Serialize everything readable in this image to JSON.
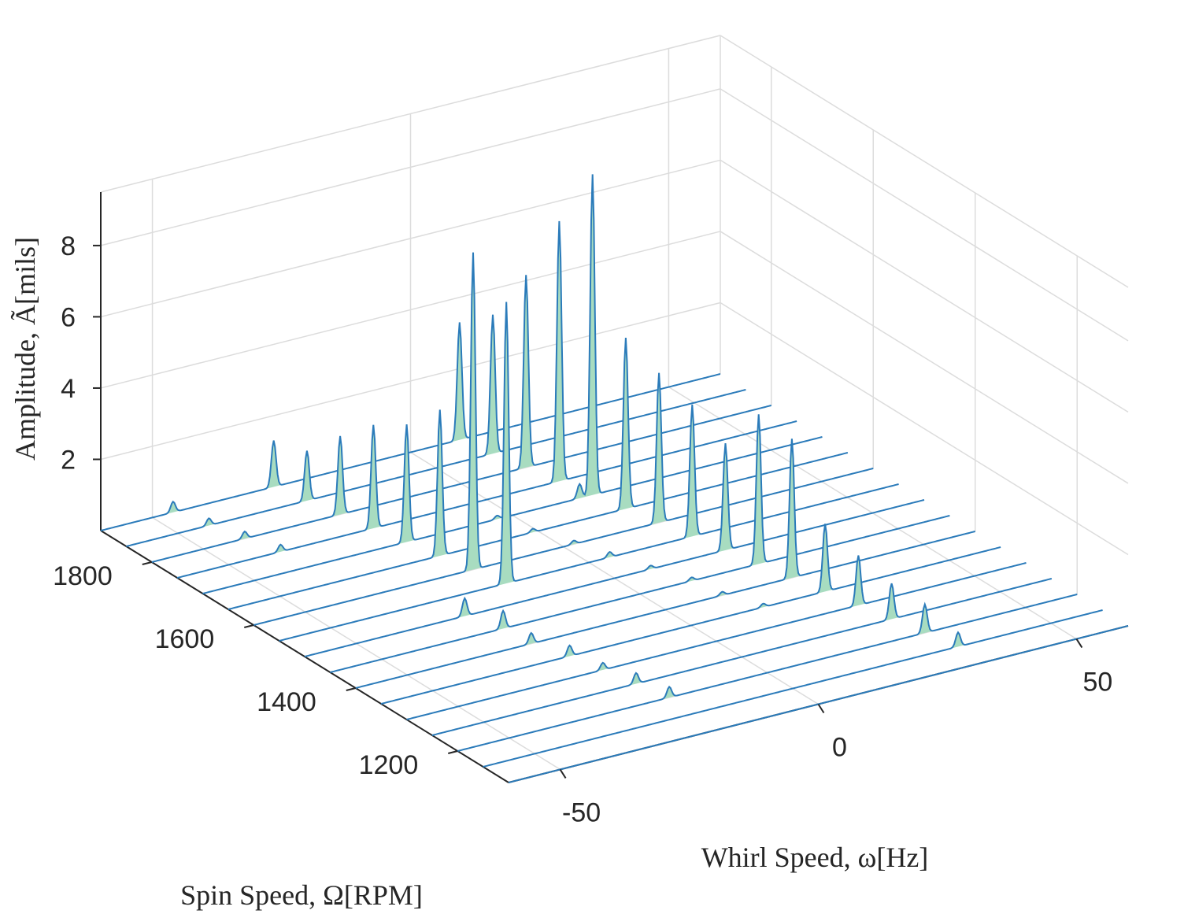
{
  "chart_data": {
    "type": "waterfall-3d",
    "title": "",
    "xlabel": "Whirl Speed, ω[Hz]",
    "ylabel": "Spin Speed, Ω[RPM]",
    "zlabel": "Amplitude, Ã[mils]",
    "xlim": [
      -60,
      60
    ],
    "ylim": [
      1100,
      1900
    ],
    "zlim": [
      0,
      9.5
    ],
    "x_ticks": [
      {
        "value": -50,
        "label": "-50"
      },
      {
        "value": 0,
        "label": "0"
      },
      {
        "value": 50,
        "label": "50"
      }
    ],
    "y_ticks": [
      {
        "value": 1200,
        "label": "1200"
      },
      {
        "value": 1400,
        "label": "1400"
      },
      {
        "value": 1600,
        "label": "1600"
      },
      {
        "value": 1800,
        "label": "1800"
      }
    ],
    "z_ticks": [
      {
        "value": 2,
        "label": "2"
      },
      {
        "value": 4,
        "label": "4"
      },
      {
        "value": 6,
        "label": "6"
      },
      {
        "value": 8,
        "label": "8"
      }
    ],
    "grid": true,
    "colors": {
      "line": "#2b7bba",
      "fill": "#a8dcc0",
      "grid": "#dcdcdc",
      "axis": "#262626"
    },
    "series": [
      {
        "spin_rpm": 1100,
        "peaks": []
      },
      {
        "spin_rpm": 1150,
        "peaks": [
          {
            "whirl_hz": 32.0,
            "amplitude": 0.4
          }
        ]
      },
      {
        "spin_rpm": 1200,
        "peaks": [
          {
            "whirl_hz": 30.5,
            "amplitude": 0.8
          },
          {
            "whirl_hz": -19.0,
            "amplitude": 0.3
          }
        ]
      },
      {
        "spin_rpm": 1250,
        "peaks": [
          {
            "whirl_hz": 29.0,
            "amplitude": 1.0
          },
          {
            "whirl_hz": -20.5,
            "amplitude": 0.3
          }
        ]
      },
      {
        "spin_rpm": 1300,
        "peaks": [
          {
            "whirl_hz": 27.5,
            "amplitude": 1.4
          },
          {
            "whirl_hz": -22.0,
            "amplitude": 0.2
          }
        ]
      },
      {
        "spin_rpm": 1350,
        "peaks": [
          {
            "whirl_hz": 26.0,
            "amplitude": 1.9
          },
          {
            "whirl_hz": -23.5,
            "amplitude": 0.3
          },
          {
            "whirl_hz": 14.0,
            "amplitude": 0.1
          }
        ]
      },
      {
        "spin_rpm": 1400,
        "peaks": [
          {
            "whirl_hz": 24.5,
            "amplitude": 3.9
          },
          {
            "whirl_hz": -26.0,
            "amplitude": 0.3
          },
          {
            "whirl_hz": 11.0,
            "amplitude": 0.1
          }
        ]
      },
      {
        "spin_rpm": 1450,
        "peaks": [
          {
            "whirl_hz": 23.0,
            "amplitude": 4.2
          },
          {
            "whirl_hz": -26.5,
            "amplitude": 0.5
          },
          {
            "whirl_hz": 10.0,
            "amplitude": 0.1
          }
        ]
      },
      {
        "spin_rpm": 1500,
        "peaks": [
          {
            "whirl_hz": 21.5,
            "amplitude": 3.0
          },
          {
            "whirl_hz": -29.0,
            "amplitude": 0.5
          },
          {
            "whirl_hz": 7.0,
            "amplitude": 0.1
          }
        ]
      },
      {
        "spin_rpm": 1550,
        "peaks": [
          {
            "whirl_hz": 20.0,
            "amplitude": 3.7
          },
          {
            "whirl_hz": -16.0,
            "amplitude": 7.9
          },
          {
            "whirl_hz": 4.0,
            "amplitude": 0.15
          }
        ]
      },
      {
        "spin_rpm": 1600,
        "peaks": [
          {
            "whirl_hz": 18.5,
            "amplitude": 4.2
          },
          {
            "whirl_hz": -17.5,
            "amplitude": 8.9
          },
          {
            "whirl_hz": 2.0,
            "amplitude": 0.1
          }
        ]
      },
      {
        "spin_rpm": 1650,
        "peaks": [
          {
            "whirl_hz": 17.0,
            "amplitude": 4.8
          },
          {
            "whirl_hz": -19.0,
            "amplitude": 4.1
          },
          {
            "whirl_hz": -1.0,
            "amplitude": 0.1
          }
        ]
      },
      {
        "spin_rpm": 1700,
        "peaks": [
          {
            "whirl_hz": 15.5,
            "amplitude": 9.0
          },
          {
            "whirl_hz": -20.5,
            "amplitude": 3.3
          },
          {
            "whirl_hz": -3.0,
            "amplitude": 0.1
          },
          {
            "whirl_hz": 13.0,
            "amplitude": 0.4
          }
        ]
      },
      {
        "spin_rpm": 1750,
        "peaks": [
          {
            "whirl_hz": 14.0,
            "amplitude": 7.3
          },
          {
            "whirl_hz": -22.0,
            "amplitude": 2.9
          },
          {
            "whirl_hz": -40.0,
            "amplitude": 0.2
          }
        ]
      },
      {
        "spin_rpm": 1800,
        "peaks": [
          {
            "whirl_hz": 12.5,
            "amplitude": 5.4
          },
          {
            "whirl_hz": -23.5,
            "amplitude": 2.2
          },
          {
            "whirl_hz": -42.0,
            "amplitude": 0.2
          }
        ]
      },
      {
        "spin_rpm": 1850,
        "peaks": [
          {
            "whirl_hz": 11.0,
            "amplitude": 3.9
          },
          {
            "whirl_hz": -25.0,
            "amplitude": 1.4
          },
          {
            "whirl_hz": -44.0,
            "amplitude": 0.2
          }
        ]
      },
      {
        "spin_rpm": 1900,
        "peaks": [
          {
            "whirl_hz": 9.5,
            "amplitude": 3.3
          },
          {
            "whirl_hz": -26.5,
            "amplitude": 1.3
          },
          {
            "whirl_hz": -46.0,
            "amplitude": 0.3
          }
        ]
      }
    ]
  }
}
